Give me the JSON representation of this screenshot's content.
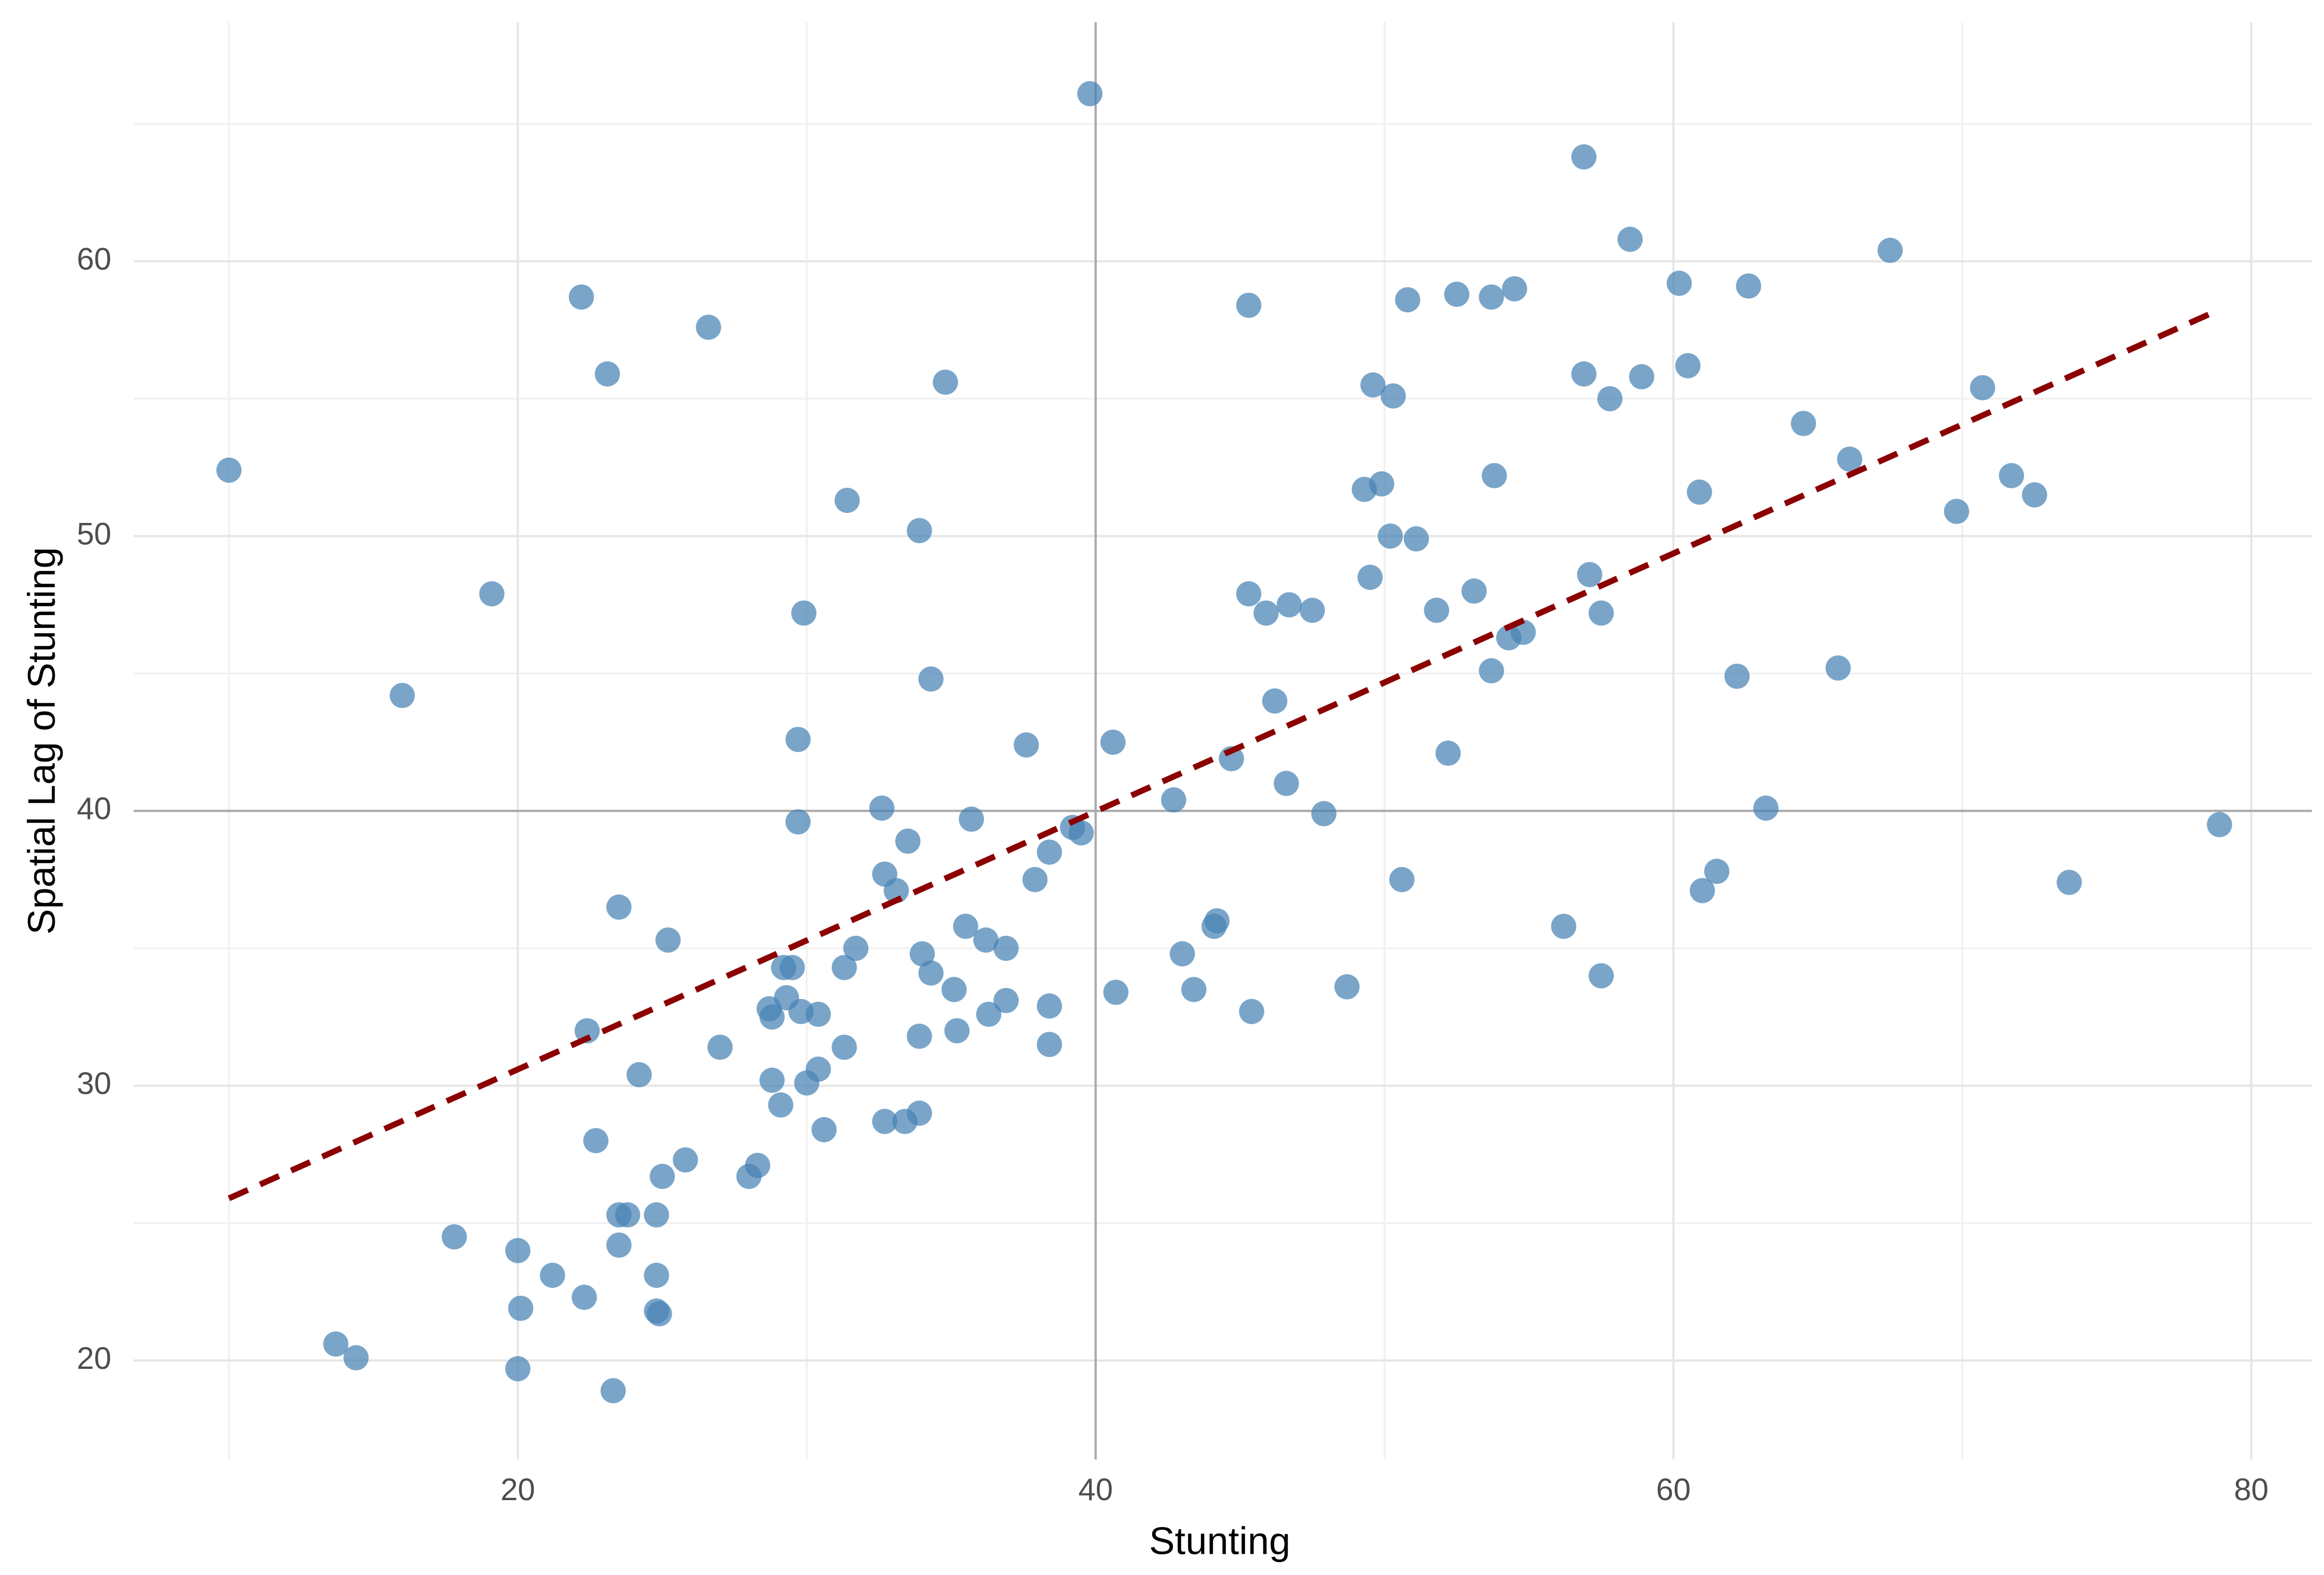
{
  "chart_data": {
    "type": "scatter",
    "x_label": "Stunting",
    "y_label": "Spatial Lag of Stunting",
    "xlim": [
      6.7,
      82.1
    ],
    "ylim": [
      16.4,
      68.7
    ],
    "xticks": [
      20,
      40,
      60,
      80
    ],
    "yticks": [
      20,
      30,
      40,
      50,
      60
    ],
    "x_minor_grid": [
      10,
      30,
      50,
      70
    ],
    "y_minor_grid": [
      25,
      35,
      45,
      55,
      65
    ],
    "grid": true,
    "vlines": [
      40
    ],
    "hlines": [
      40
    ],
    "trend": {
      "x": [
        10.0,
        78.6
      ],
      "y": [
        25.9,
        58.1
      ],
      "color": "#8b0000"
    },
    "series": [
      {
        "color": "#4682b4",
        "x": [
          10.0,
          13.7,
          14.4,
          16.0,
          17.8,
          19.1,
          20.0,
          20.1,
          20.0,
          21.2,
          22.2,
          22.3,
          22.4,
          22.7,
          23.1,
          23.3,
          23.5,
          23.5,
          23.8,
          23.5,
          24.2,
          24.8,
          24.8,
          24.8,
          24.9,
          25.0,
          25.2,
          25.8,
          26.6,
          27.0,
          28.0,
          28.3,
          28.7,
          28.8,
          28.8,
          29.1,
          29.2,
          29.3,
          29.5,
          29.7,
          29.7,
          29.8,
          29.9,
          30.0,
          30.4,
          30.4,
          30.6,
          31.3,
          31.3,
          31.4,
          31.7,
          32.6,
          32.7,
          32.7,
          33.1,
          33.4,
          33.5,
          33.9,
          33.9,
          33.9,
          34.0,
          34.3,
          34.3,
          34.8,
          35.1,
          35.2,
          35.5,
          35.7,
          36.2,
          36.3,
          36.9,
          36.9,
          37.6,
          37.9,
          38.4,
          38.4,
          38.4,
          39.2,
          39.5,
          39.8,
          40.6,
          40.7,
          42.7,
          43.0,
          43.4,
          44.1,
          44.2,
          44.7,
          45.3,
          45.3,
          45.4,
          45.9,
          46.2,
          46.6,
          46.7,
          47.5,
          47.9,
          48.7,
          49.3,
          49.5,
          49.6,
          49.9,
          50.2,
          50.3,
          50.6,
          50.8,
          51.1,
          51.8,
          52.2,
          52.5,
          53.1,
          53.7,
          53.7,
          53.8,
          54.3,
          54.5,
          54.8,
          56.2,
          56.9,
          56.9,
          57.1,
          57.5,
          57.5,
          57.8,
          58.5,
          58.9,
          60.2,
          60.5,
          60.9,
          61.0,
          61.5,
          62.2,
          62.6,
          63.2,
          64.5,
          65.7,
          66.1,
          67.5,
          69.8,
          70.7,
          71.7,
          72.5,
          73.7,
          78.9
        ],
        "values": [
          52.4,
          20.6,
          20.1,
          44.2,
          24.5,
          47.9,
          24.0,
          21.9,
          19.7,
          23.1,
          58.7,
          22.3,
          32.0,
          28.0,
          55.9,
          18.9,
          36.5,
          25.3,
          25.3,
          24.2,
          30.4,
          23.1,
          25.3,
          21.8,
          21.7,
          26.7,
          35.3,
          27.3,
          57.6,
          31.4,
          26.7,
          27.1,
          32.8,
          32.5,
          30.2,
          29.3,
          34.3,
          33.2,
          34.3,
          42.6,
          39.6,
          32.7,
          47.2,
          30.1,
          32.6,
          30.6,
          28.4,
          34.3,
          31.4,
          51.3,
          35.0,
          40.1,
          37.7,
          28.7,
          37.1,
          28.7,
          38.9,
          50.2,
          31.8,
          29.0,
          34.8,
          34.1,
          44.8,
          55.6,
          33.5,
          32.0,
          35.8,
          39.7,
          35.3,
          32.6,
          35.0,
          33.1,
          42.4,
          37.5,
          32.9,
          31.5,
          38.5,
          39.4,
          39.2,
          66.1,
          42.5,
          33.4,
          40.4,
          34.8,
          33.5,
          35.8,
          36.0,
          41.9,
          58.4,
          47.9,
          32.7,
          47.2,
          44.0,
          41.0,
          47.5,
          47.3,
          39.9,
          33.6,
          51.7,
          48.5,
          55.5,
          51.9,
          50.0,
          55.1,
          37.5,
          58.6,
          49.9,
          47.3,
          42.1,
          58.8,
          48.0,
          45.1,
          58.7,
          52.2,
          46.3,
          59.0,
          46.5,
          35.8,
          63.8,
          55.9,
          48.6,
          34.0,
          47.2,
          55.0,
          60.8,
          55.8,
          59.2,
          56.2,
          51.6,
          37.1,
          37.8,
          44.9,
          59.1,
          40.1,
          54.1,
          45.2,
          52.8,
          60.4,
          50.9,
          55.4,
          52.2,
          51.5,
          37.4,
          39.5
        ]
      }
    ]
  }
}
